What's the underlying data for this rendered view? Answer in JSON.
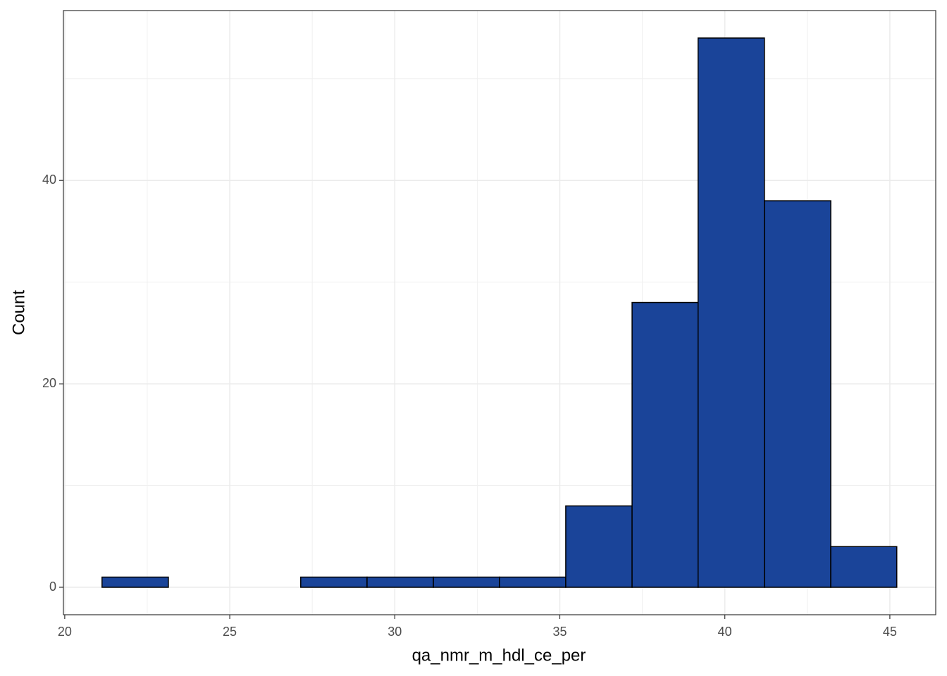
{
  "chart_data": {
    "type": "histogram",
    "x_label": "qa_nmr_m_hdl_ce_per",
    "y_label": "Count",
    "bins": [
      21.13,
      23.14,
      25.14,
      27.15,
      29.16,
      31.17,
      33.17,
      35.18,
      37.19,
      39.19,
      41.2,
      43.21,
      45.21
    ],
    "values": [
      1,
      0,
      0,
      1,
      1,
      1,
      1,
      8,
      28,
      54,
      38,
      4
    ],
    "color": "#1a4499",
    "edge_color": "#000000",
    "xlim": [
      19.96,
      46.39
    ],
    "ylim": [
      -2.7,
      56.7
    ],
    "xticks": [
      20,
      25,
      30,
      35,
      40,
      45
    ],
    "yticks": [
      0,
      20,
      40
    ],
    "grid": true,
    "minor_grid": true
  }
}
